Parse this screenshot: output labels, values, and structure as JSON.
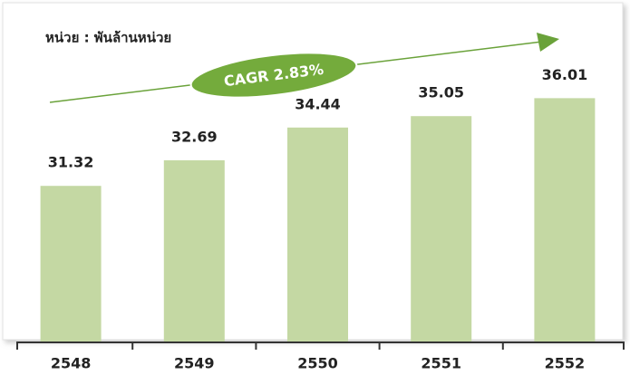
{
  "chart_data": {
    "type": "bar",
    "subtitle": "หน่วย : พันล้านหน่วย",
    "annotation": "CAGR 2.83%",
    "categories": [
      "2548",
      "2549",
      "2550",
      "2551",
      "2552"
    ],
    "values": [
      31.32,
      32.69,
      34.44,
      35.05,
      36.01
    ],
    "color": "#c4d8a3",
    "ylim": [
      23,
      40
    ]
  }
}
